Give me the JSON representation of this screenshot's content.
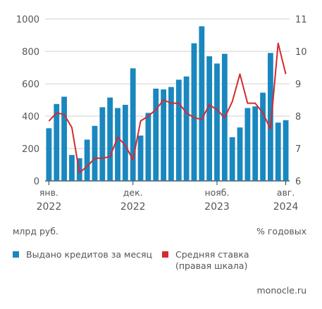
{
  "chart_data": {
    "type": "bar+line",
    "x_tick_labels": [
      {
        "month": "янв.",
        "year": "2022"
      },
      {
        "month": "дек.",
        "year": "2022"
      },
      {
        "month": "нояб.",
        "year": "2023"
      },
      {
        "month": "авг.",
        "year": "2024"
      }
    ],
    "x_tick_index": [
      0,
      11,
      22,
      31
    ],
    "y_left": {
      "ticks": [
        "0",
        "200",
        "400",
        "600",
        "800",
        "1000"
      ],
      "range": [
        0,
        1000
      ],
      "unit": "млрд руб."
    },
    "y_right": {
      "ticks": [
        "6",
        "7",
        "8",
        "9",
        "10",
        "11"
      ],
      "range": [
        6,
        11
      ],
      "unit": "% годовых"
    },
    "series": [
      {
        "name": "Выдано кредитов за месяц",
        "axis": "left",
        "type": "bar",
        "color": "#1a87be",
        "values": [
          325,
          475,
          520,
          160,
          140,
          255,
          340,
          455,
          515,
          450,
          470,
          695,
          280,
          420,
          570,
          565,
          580,
          625,
          645,
          850,
          955,
          770,
          725,
          785,
          270,
          330,
          450,
          460,
          545,
          790,
          360,
          375
        ]
      },
      {
        "name": "Средняя ставка",
        "name_line2": "(правая шкала)",
        "axis": "right",
        "type": "line",
        "color": "#d42a2f",
        "values": [
          7.85,
          8.1,
          8.05,
          7.65,
          6.25,
          6.45,
          6.7,
          6.7,
          6.75,
          7.35,
          7.1,
          6.65,
          7.85,
          8.0,
          8.2,
          8.5,
          8.4,
          8.4,
          8.1,
          7.95,
          7.9,
          8.35,
          8.2,
          7.95,
          8.45,
          9.3,
          8.4,
          8.4,
          8.1,
          7.6,
          10.25,
          9.3
        ]
      }
    ],
    "grid": "horizontal",
    "legend_position": "bottom-left"
  },
  "source": "monocle.ru"
}
